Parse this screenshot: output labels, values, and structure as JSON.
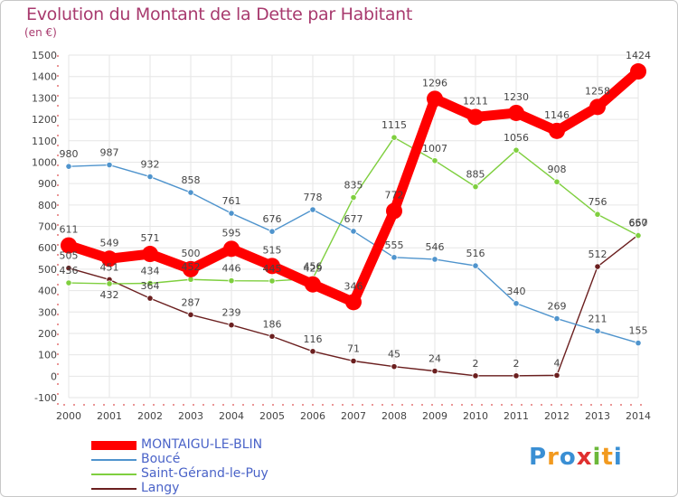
{
  "title": "Evolution du Montant de la Dette par Habitant",
  "unit": "(en €)",
  "logo": "Proxiti",
  "chart_data": {
    "type": "line",
    "title": "Evolution du Montant de la Dette par Habitant",
    "ylabel": "(en €)",
    "xlabel": "",
    "ylim": [
      -100,
      1500
    ],
    "yticks": [
      -100,
      0,
      100,
      200,
      300,
      400,
      500,
      600,
      700,
      800,
      900,
      1000,
      1100,
      1200,
      1300,
      1400,
      1500
    ],
    "x": [
      "2000",
      "2001",
      "2002",
      "2003",
      "2004",
      "2005",
      "2006",
      "2007",
      "2008",
      "2009",
      "2010",
      "2011",
      "2012",
      "2013",
      "2014"
    ],
    "grid": true,
    "legend_position": "bottom-left",
    "series": [
      {
        "name": "MONTAIGU-LE-BLIN",
        "color": "#ff0000",
        "values": [
          611,
          549,
          571,
          500,
          595,
          515,
          429,
          346,
          772,
          1296,
          1211,
          1230,
          1146,
          1258,
          1424
        ]
      },
      {
        "name": "Boucé",
        "color": "#4f94cd",
        "values": [
          980,
          987,
          932,
          858,
          761,
          676,
          778,
          677,
          555,
          546,
          516,
          340,
          269,
          211,
          155
        ]
      },
      {
        "name": "Saint-Gérand-le-Puy",
        "color": "#7fcf3f",
        "values": [
          436,
          432,
          434,
          452,
          446,
          445,
          456,
          835,
          1115,
          1007,
          885,
          1056,
          908,
          756,
          657
        ]
      },
      {
        "name": "Langy",
        "color": "#6b1f1f",
        "values": [
          505,
          451,
          364,
          287,
          239,
          186,
          116,
          71,
          45,
          24,
          2,
          2,
          4,
          512,
          660
        ]
      }
    ]
  }
}
